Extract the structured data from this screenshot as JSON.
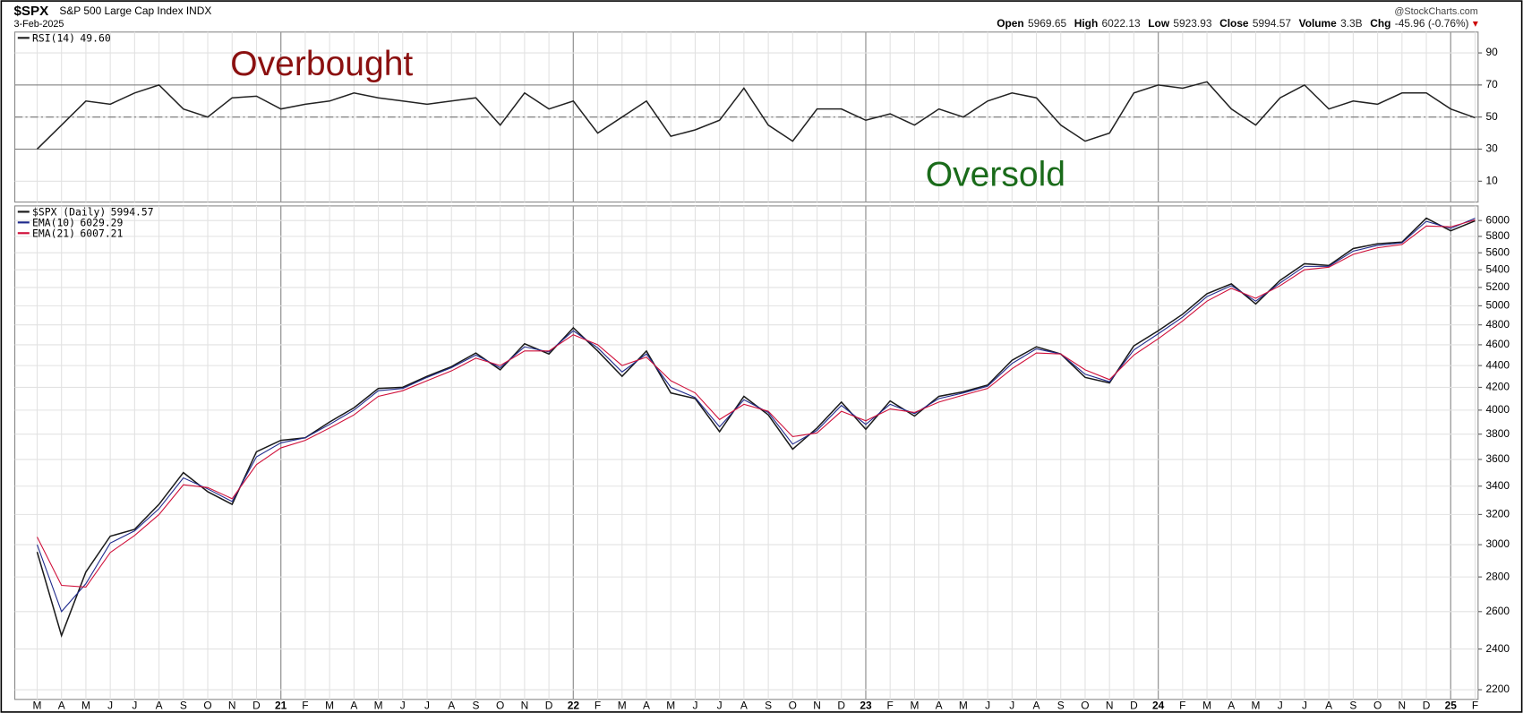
{
  "header": {
    "symbol": "$SPX",
    "name": "S&P 500 Large Cap Index INDX",
    "date": "3-Feb-2025",
    "source": "@StockCharts.com",
    "quote": [
      {
        "label": "Open",
        "value": "5969.65"
      },
      {
        "label": "High",
        "value": "6022.13"
      },
      {
        "label": "Low",
        "value": "5923.93"
      },
      {
        "label": "Close",
        "value": "5994.57"
      },
      {
        "label": "Volume",
        "value": "3.3B"
      },
      {
        "label": "Chg",
        "value": "-45.96 (-0.76%)"
      }
    ]
  },
  "chart_data": [
    {
      "type": "line",
      "annotations": [
        "Overbought",
        "Oversold"
      ],
      "categories": [
        "M",
        "A",
        "M",
        "J",
        "J",
        "A",
        "S",
        "O",
        "N",
        "D",
        "21",
        "F",
        "M",
        "A",
        "M",
        "J",
        "J",
        "A",
        "S",
        "O",
        "N",
        "D",
        "22",
        "F",
        "M",
        "A",
        "M",
        "J",
        "J",
        "A",
        "S",
        "O",
        "N",
        "D",
        "23",
        "F",
        "M",
        "A",
        "M",
        "J",
        "J",
        "A",
        "S",
        "O",
        "N",
        "D",
        "24",
        "F",
        "M",
        "A",
        "M",
        "J",
        "J",
        "A",
        "S",
        "O",
        "N",
        "D",
        "25",
        "F"
      ],
      "series": [
        {
          "name": "RSI(14)",
          "last_label": "49.60",
          "color": "#222222",
          "values": [
            30,
            45,
            60,
            58,
            65,
            70,
            55,
            50,
            62,
            63,
            55,
            58,
            60,
            65,
            62,
            60,
            58,
            60,
            62,
            45,
            65,
            55,
            60,
            40,
            50,
            60,
            38,
            42,
            48,
            68,
            45,
            35,
            55,
            55,
            48,
            52,
            45,
            55,
            50,
            60,
            65,
            62,
            45,
            35,
            40,
            65,
            70,
            68,
            72,
            55,
            45,
            62,
            70,
            55,
            60,
            58,
            65,
            65,
            55,
            49.6
          ]
        }
      ],
      "ylim": [
        -3,
        103
      ],
      "yticks": [
        10,
        30,
        50,
        70,
        90
      ],
      "ref_lines": [
        30,
        50,
        70
      ],
      "grid": true
    },
    {
      "type": "line",
      "log": true,
      "categories": [
        "M",
        "A",
        "M",
        "J",
        "J",
        "A",
        "S",
        "O",
        "N",
        "D",
        "21",
        "F",
        "M",
        "A",
        "M",
        "J",
        "J",
        "A",
        "S",
        "O",
        "N",
        "D",
        "22",
        "F",
        "M",
        "A",
        "M",
        "J",
        "J",
        "A",
        "S",
        "O",
        "N",
        "D",
        "23",
        "F",
        "M",
        "A",
        "M",
        "J",
        "J",
        "A",
        "S",
        "O",
        "N",
        "D",
        "24",
        "F",
        "M",
        "A",
        "M",
        "J",
        "J",
        "A",
        "S",
        "O",
        "N",
        "D",
        "25",
        "F"
      ],
      "series": [
        {
          "name": "$SPX (Daily)",
          "color": "#1a1a1a",
          "values": [
            2954,
            2470,
            2830,
            3055,
            3100,
            3270,
            3500,
            3360,
            3270,
            3660,
            3750,
            3770,
            3900,
            4020,
            4190,
            4200,
            4300,
            4390,
            4520,
            4360,
            4610,
            4510,
            4770,
            4540,
            4300,
            4540,
            4150,
            4100,
            3820,
            4120,
            3960,
            3680,
            3850,
            4070,
            3840,
            4080,
            3950,
            4120,
            4160,
            4220,
            4450,
            4580,
            4510,
            4290,
            4240,
            4590,
            4740,
            4910,
            5130,
            5240,
            5020,
            5280,
            5470,
            5450,
            5650,
            5710,
            5730,
            6030,
            5870,
            5994.57
          ]
        },
        {
          "name": "EMA(10)",
          "color": "#1f2a8c",
          "values": [
            3000,
            2600,
            2760,
            3010,
            3090,
            3240,
            3460,
            3380,
            3290,
            3620,
            3730,
            3770,
            3880,
            4000,
            4170,
            4190,
            4290,
            4380,
            4500,
            4380,
            4580,
            4530,
            4740,
            4570,
            4340,
            4510,
            4200,
            4110,
            3860,
            4090,
            3980,
            3720,
            3830,
            4040,
            3880,
            4050,
            3970,
            4100,
            4150,
            4210,
            4420,
            4560,
            4510,
            4320,
            4250,
            4550,
            4710,
            4880,
            5100,
            5220,
            5050,
            5250,
            5440,
            5440,
            5620,
            5690,
            5720,
            5990,
            5900,
            6029.29
          ]
        },
        {
          "name": "EMA(21)",
          "color": "#d0103a",
          "values": [
            3050,
            2750,
            2740,
            2950,
            3060,
            3200,
            3410,
            3390,
            3310,
            3560,
            3690,
            3750,
            3850,
            3960,
            4120,
            4170,
            4260,
            4350,
            4470,
            4400,
            4540,
            4540,
            4700,
            4600,
            4400,
            4480,
            4260,
            4150,
            3920,
            4050,
            3990,
            3780,
            3810,
            3990,
            3910,
            4010,
            3980,
            4070,
            4130,
            4190,
            4370,
            4520,
            4510,
            4360,
            4270,
            4500,
            4660,
            4840,
            5050,
            5190,
            5080,
            5220,
            5400,
            5430,
            5580,
            5660,
            5700,
            5930,
            5920,
            6007.21
          ]
        }
      ],
      "ylim": [
        2155,
        6190
      ],
      "yticks": [
        2200,
        2400,
        2600,
        2800,
        3000,
        3200,
        3400,
        3600,
        3800,
        4000,
        4200,
        4400,
        4600,
        4800,
        5000,
        5200,
        5400,
        5600,
        5800,
        6000
      ],
      "grid": true
    }
  ]
}
